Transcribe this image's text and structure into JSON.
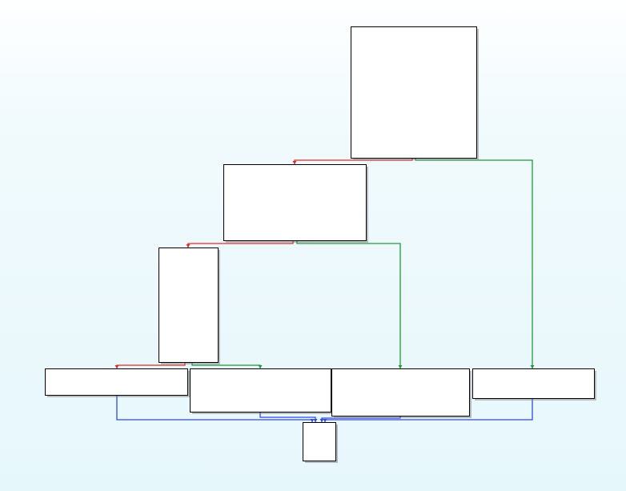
{
  "graph": {
    "colors": {
      "false_branch": "#e02b2b",
      "true_branch": "#1f9a3a",
      "unconditional": "#2f48e6",
      "block_fill": "#ffffff",
      "block_border": "#000000"
    },
    "blocks": [
      {
        "id": "b0",
        "lines": []
      },
      {
        "id": "b1",
        "lines": []
      },
      {
        "id": "b2",
        "lines": []
      },
      {
        "id": "b3",
        "lines": []
      },
      {
        "id": "b4",
        "lines": []
      },
      {
        "id": "b5",
        "lines": []
      },
      {
        "id": "b6",
        "lines": []
      },
      {
        "id": "b7",
        "lines": []
      }
    ],
    "edges": [
      {
        "from": "b0",
        "to": "b1",
        "kind": "false_branch"
      },
      {
        "from": "b0",
        "to": "b6",
        "kind": "true_branch"
      },
      {
        "from": "b1",
        "to": "b2",
        "kind": "false_branch"
      },
      {
        "from": "b1",
        "to": "b5",
        "kind": "true_branch"
      },
      {
        "from": "b2",
        "to": "b3",
        "kind": "false_branch"
      },
      {
        "from": "b2",
        "to": "b4",
        "kind": "true_branch"
      },
      {
        "from": "b3",
        "to": "b7",
        "kind": "unconditional"
      },
      {
        "from": "b4",
        "to": "b7",
        "kind": "unconditional"
      },
      {
        "from": "b5",
        "to": "b7",
        "kind": "unconditional"
      },
      {
        "from": "b6",
        "to": "b7",
        "kind": "unconditional"
      }
    ]
  }
}
